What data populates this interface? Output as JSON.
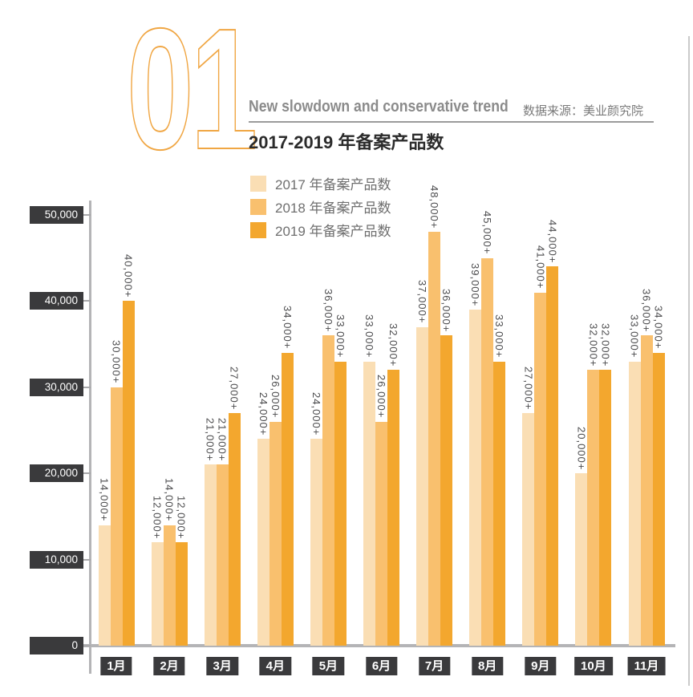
{
  "header": {
    "section_number": "01",
    "title_en": "New slowdown and conservative trend",
    "source": "数据来源：美业颜究院",
    "title_cn": "2017-2019 年备案产品数"
  },
  "colors": {
    "accent_outline": "#f0a643",
    "series_2017": "#fadeb4",
    "series_2018": "#f9c06e",
    "series_2019": "#f3a72e",
    "axis_gray": "#b4b4b6",
    "label_box_dark": "#3a3a3c",
    "value_label_text": "#4b4b4d"
  },
  "chart_data": {
    "type": "bar",
    "title": "2017-2019 年备案产品数",
    "categories": [
      "1月",
      "2月",
      "3月",
      "4月",
      "5月",
      "6月",
      "7月",
      "8月",
      "9月",
      "10月",
      "11月"
    ],
    "series": [
      {
        "name": "2017 年备案产品数",
        "color": "#fadeb4",
        "values": [
          14000,
          12000,
          21000,
          24000,
          24000,
          33000,
          37000,
          39000,
          27000,
          20000,
          33000
        ],
        "labels": [
          "14,000+",
          "12,000+",
          "21,000+",
          "24,000+",
          "24,000+",
          "33,000+",
          "37,000+",
          "39,000+",
          "27,000+",
          "20,000+",
          "33,000+"
        ]
      },
      {
        "name": "2018 年备案产品数",
        "color": "#f9c06e",
        "values": [
          30000,
          14000,
          21000,
          26000,
          36000,
          26000,
          48000,
          45000,
          41000,
          32000,
          36000
        ],
        "labels": [
          "30,000+",
          "14,000+",
          "21,000+",
          "26,000+",
          "36,000+",
          "26,000+",
          "48,000+",
          "45,000+",
          "41,000+",
          "32,000+",
          "36,000+"
        ]
      },
      {
        "name": "2019 年备案产品数",
        "color": "#f3a72e",
        "values": [
          40000,
          12000,
          27000,
          34000,
          33000,
          32000,
          36000,
          33000,
          44000,
          32000,
          34000
        ],
        "labels": [
          "40,000+",
          "12,000+",
          "27,000+",
          "34,000+",
          "33,000+",
          "32,000+",
          "36,000+",
          "33,000+",
          "44,000+",
          "32,000+",
          "34,000+"
        ]
      }
    ],
    "y_ticks": [
      {
        "value": 0,
        "label": "0"
      },
      {
        "value": 10000,
        "label": "10,000"
      },
      {
        "value": 20000,
        "label": "20,000"
      },
      {
        "value": 30000,
        "label": "30,000"
      },
      {
        "value": 40000,
        "label": "40,000"
      },
      {
        "value": 50000,
        "label": "50,000"
      }
    ],
    "ylim": [
      0,
      50000
    ],
    "xlabel": "",
    "ylabel": "",
    "grid": false,
    "legend_position": "top",
    "value_labels_rotated": true
  }
}
